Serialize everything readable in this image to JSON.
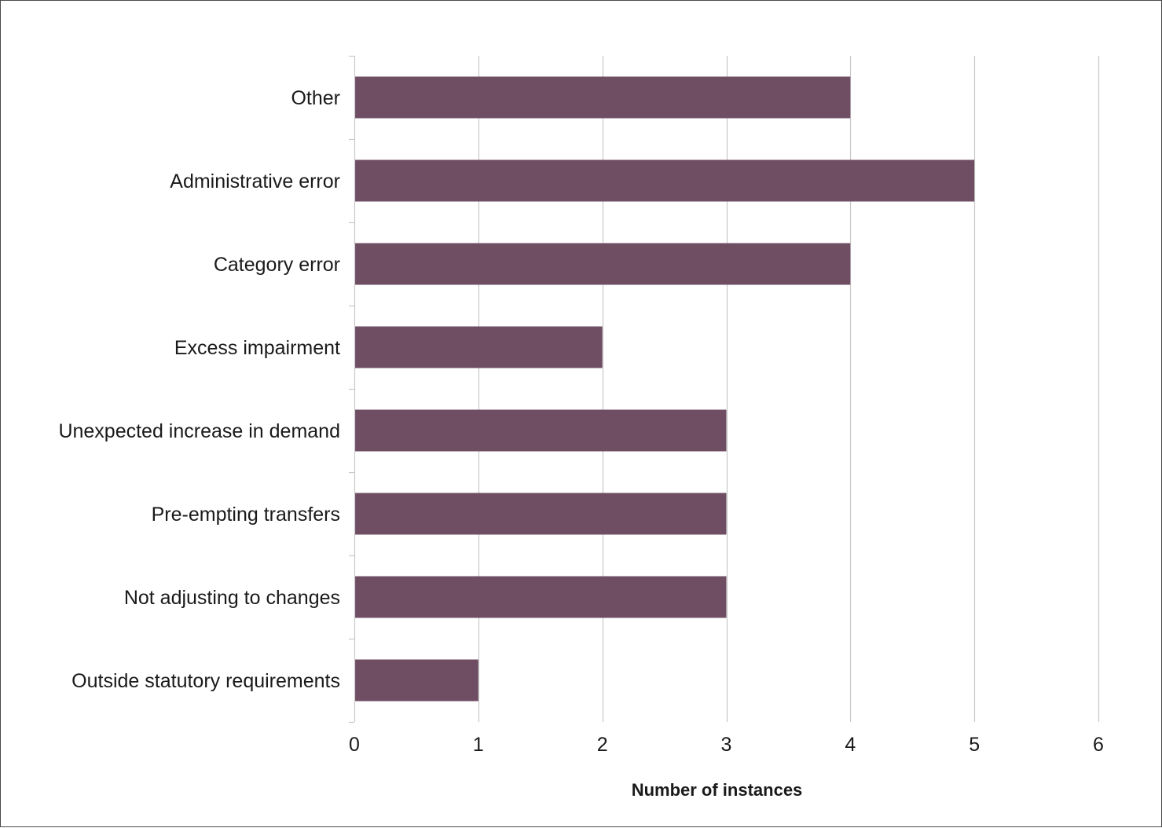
{
  "chart_data": {
    "type": "bar",
    "orientation": "horizontal",
    "categories": [
      "Other",
      "Administrative error",
      "Category error",
      "Excess impairment",
      "Unexpected increase in demand",
      "Pre-empting transfers",
      "Not adjusting to changes",
      "Outside statutory requirements"
    ],
    "values": [
      4,
      5,
      4,
      2,
      3,
      3,
      3,
      1
    ],
    "title": "",
    "xlabel": "Number of instances",
    "ylabel": "",
    "xlim": [
      0,
      6
    ],
    "xticks": [
      0,
      1,
      2,
      3,
      4,
      5,
      6
    ],
    "grid": "vertical",
    "legend": "none",
    "bar_color": "#6f4e64",
    "grid_color": "#c8c8c8"
  }
}
